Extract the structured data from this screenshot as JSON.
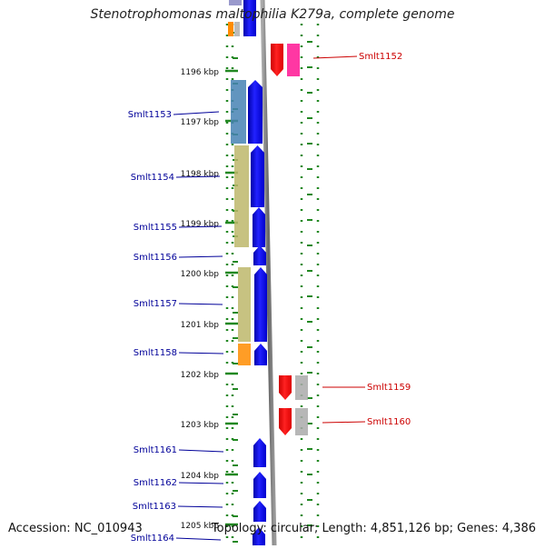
{
  "title": "Stenotrophomonas maltophilia K279a, complete genome",
  "footer": {
    "accession": "Accession: NC_010943",
    "summary": "Topology: circular; Length: 4,851,126 bp; Genes: 4,386"
  },
  "colors": {
    "strand_forward": "#0000ee",
    "strand_reverse": "#ee0000",
    "label_forward": "#000099",
    "label_reverse": "#cc0000",
    "ruler_tick": "#228822",
    "backbone": "#888888"
  },
  "ruler": {
    "unit": "kbp",
    "labels": [
      "1196 kbp",
      "1197 kbp",
      "1198 kbp",
      "1199 kbp",
      "1200 kbp",
      "1201 kbp",
      "1202 kbp",
      "1203 kbp",
      "1204 kbp",
      "1205 kbp"
    ]
  },
  "genes": [
    {
      "name": "Smlt1152",
      "strand": "reverse",
      "cog_colors": [
        "#ff1493"
      ]
    },
    {
      "name": "Smlt1153",
      "strand": "forward",
      "cog_colors": [
        "#4682b4"
      ]
    },
    {
      "name": "Smlt1154",
      "strand": "forward",
      "cog_colors": [
        "#bdb76b"
      ]
    },
    {
      "name": "Smlt1155",
      "strand": "forward",
      "cog_colors": [
        "#bdb76b"
      ]
    },
    {
      "name": "Smlt1156",
      "strand": "forward",
      "cog_colors": []
    },
    {
      "name": "Smlt1157",
      "strand": "forward",
      "cog_colors": [
        "#bdb76b"
      ]
    },
    {
      "name": "Smlt1158",
      "strand": "forward",
      "cog_colors": [
        "#ff8c00"
      ]
    },
    {
      "name": "Smlt1159",
      "strand": "reverse",
      "cog_colors": [
        "#aaaaaa"
      ]
    },
    {
      "name": "Smlt1160",
      "strand": "reverse",
      "cog_colors": [
        "#aaaaaa"
      ]
    },
    {
      "name": "Smlt1161",
      "strand": "forward",
      "cog_colors": []
    },
    {
      "name": "Smlt1162",
      "strand": "forward",
      "cog_colors": []
    },
    {
      "name": "Smlt1163",
      "strand": "forward",
      "cog_colors": []
    },
    {
      "name": "Smlt1164",
      "strand": "forward",
      "cog_colors": []
    }
  ]
}
